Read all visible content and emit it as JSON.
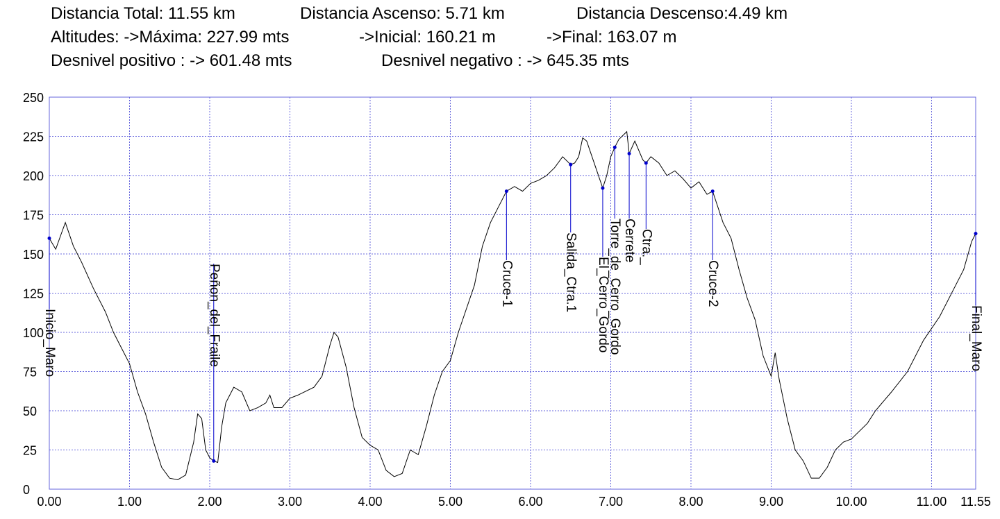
{
  "header": {
    "lines": [
      [
        "Distancia Total: 11.55 km",
        "Distancia Ascenso: 5.71 km",
        "Distancia Descenso:4.49 km"
      ],
      [
        "Altitudes: ->Máxima: 227.99 mts",
        "->Inicial: 160.21 m",
        "->Final: 163.07 m"
      ],
      [
        "Desnivel positivo : -> 601.48 mts",
        "Desnivel negativo : -> 645.35 mts"
      ]
    ]
  },
  "chart_data": {
    "type": "line",
    "color": "#000000",
    "grid": true,
    "grid_color": "#6666dd",
    "marker_color": "#0000cc",
    "xlim": [
      0,
      11.55
    ],
    "ylim": [
      0,
      250
    ],
    "xticks": [
      {
        "value": 0,
        "label": "0.00"
      },
      {
        "value": 1,
        "label": "1.00"
      },
      {
        "value": 2,
        "label": "2.00"
      },
      {
        "value": 3,
        "label": "3.00"
      },
      {
        "value": 4,
        "label": "4.00"
      },
      {
        "value": 5,
        "label": "5.00"
      },
      {
        "value": 6,
        "label": "6.00"
      },
      {
        "value": 7,
        "label": "7.00"
      },
      {
        "value": 8,
        "label": "8.00"
      },
      {
        "value": 9,
        "label": "9.00"
      },
      {
        "value": 10,
        "label": "10.00"
      },
      {
        "value": 11,
        "label": "11.00"
      },
      {
        "value": 11.55,
        "label": "11.55"
      }
    ],
    "yticks": [
      0,
      25,
      50,
      75,
      100,
      125,
      150,
      175,
      200,
      225,
      250
    ],
    "x": [
      0,
      0.08,
      0.15,
      0.2,
      0.3,
      0.4,
      0.55,
      0.7,
      0.8,
      0.9,
      1.0,
      1.1,
      1.2,
      1.3,
      1.4,
      1.5,
      1.6,
      1.7,
      1.8,
      1.85,
      1.9,
      1.95,
      2.0,
      2.05,
      2.1,
      2.15,
      2.2,
      2.3,
      2.4,
      2.5,
      2.6,
      2.7,
      2.75,
      2.8,
      2.9,
      3.0,
      3.1,
      3.3,
      3.4,
      3.5,
      3.55,
      3.6,
      3.7,
      3.8,
      3.9,
      4.0,
      4.1,
      4.2,
      4.3,
      4.4,
      4.5,
      4.6,
      4.7,
      4.8,
      4.9,
      5.0,
      5.1,
      5.2,
      5.3,
      5.4,
      5.5,
      5.6,
      5.7,
      5.8,
      5.9,
      6.0,
      6.1,
      6.2,
      6.3,
      6.4,
      6.5,
      6.55,
      6.6,
      6.65,
      6.7,
      6.8,
      6.9,
      6.95,
      7.0,
      7.05,
      7.1,
      7.2,
      7.23,
      7.3,
      7.4,
      7.44,
      7.5,
      7.6,
      7.7,
      7.8,
      7.9,
      8.0,
      8.1,
      8.2,
      8.27,
      8.4,
      8.5,
      8.6,
      8.7,
      8.8,
      8.9,
      9.0,
      9.05,
      9.1,
      9.2,
      9.3,
      9.4,
      9.5,
      9.6,
      9.7,
      9.8,
      9.9,
      10.0,
      10.2,
      10.3,
      10.5,
      10.7,
      10.9,
      11.1,
      11.3,
      11.4,
      11.5,
      11.55
    ],
    "values": [
      160,
      153,
      163,
      170,
      155,
      145,
      128,
      113,
      100,
      90,
      80,
      62,
      48,
      30,
      14,
      7,
      6,
      9,
      30,
      48,
      45,
      25,
      20,
      18,
      17,
      40,
      55,
      65,
      62,
      50,
      52,
      55,
      60,
      52,
      52,
      58,
      60,
      65,
      72,
      92,
      100,
      97,
      78,
      52,
      33,
      28,
      25,
      12,
      8,
      10,
      25,
      22,
      40,
      60,
      75,
      82,
      100,
      115,
      130,
      155,
      170,
      180,
      190,
      193,
      190,
      195,
      197,
      200,
      205,
      212,
      207,
      208,
      212,
      224,
      222,
      207,
      192,
      200,
      212,
      218,
      223,
      228,
      214,
      222,
      210,
      208,
      212,
      208,
      200,
      203,
      198,
      192,
      196,
      188,
      190,
      170,
      160,
      140,
      122,
      108,
      85,
      72,
      87,
      70,
      45,
      25,
      18,
      7,
      7,
      14,
      25,
      30,
      32,
      42,
      50,
      62,
      75,
      95,
      110,
      130,
      140,
      158,
      163
    ],
    "waypoints": [
      {
        "label": "Inicio_Maro",
        "x": 0,
        "y": 160
      },
      {
        "label": "Peñon_del_Fraile",
        "x": 2.05,
        "y": 18
      },
      {
        "label": "Cruce-1",
        "x": 5.7,
        "y": 190
      },
      {
        "label": "Salida_Ctra.1",
        "x": 6.5,
        "y": 207
      },
      {
        "label": "El_Cerro_Gordo",
        "x": 6.9,
        "y": 192
      },
      {
        "label": "Torre_de_Cerro_Gordo",
        "x": 7.05,
        "y": 218
      },
      {
        "label": "Cerrete",
        "x": 7.23,
        "y": 214
      },
      {
        "label": "Ctra._",
        "x": 7.44,
        "y": 208
      },
      {
        "label": "Cruce-2",
        "x": 8.27,
        "y": 190
      },
      {
        "label": "Final_Maro",
        "x": 11.55,
        "y": 163
      }
    ]
  }
}
